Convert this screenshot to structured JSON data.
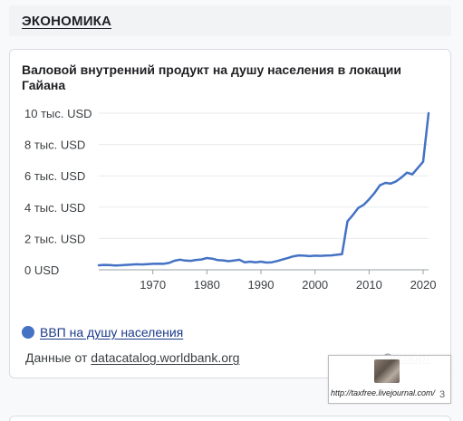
{
  "section": {
    "title": "ЭКОНОМИКА"
  },
  "card": {
    "title": "Валовой внутренний продукт на душу населения в локации Гайана",
    "legend_label": "ВВП на душу населения",
    "source_prefix": "Данные от ",
    "source_link": "datacatalog.worldbank.org",
    "export_label": "Экспорт"
  },
  "watermark": {
    "text": "http://taxfree.livejournal.com/",
    "extra": "3"
  },
  "colors": {
    "series": "#4472c4",
    "grid": "#e8eaed",
    "axis": "#9aa0a6"
  },
  "chart_data": {
    "type": "line",
    "title": "Валовой внутренний продукт на душу населения в локации Гайана",
    "xlabel": "",
    "ylabel": "",
    "xlim": [
      1960,
      2021
    ],
    "ylim": [
      0,
      10000
    ],
    "x_ticks": [
      1970,
      1980,
      1990,
      2000,
      2010,
      2020
    ],
    "y_ticks": [
      0,
      2000,
      4000,
      6000,
      8000,
      10000
    ],
    "y_tick_labels": [
      "0 USD",
      "2 тыс. USD",
      "4 тыс. USD",
      "6 тыс. USD",
      "8 тыс. USD",
      "10 тыс. USD"
    ],
    "grid": true,
    "legend": "bottom-left",
    "series": [
      {
        "name": "ВВП на душу населения",
        "x": [
          1960,
          1961,
          1962,
          1963,
          1964,
          1965,
          1966,
          1967,
          1968,
          1969,
          1970,
          1971,
          1972,
          1973,
          1974,
          1975,
          1976,
          1977,
          1978,
          1979,
          1980,
          1981,
          1982,
          1983,
          1984,
          1985,
          1986,
          1987,
          1988,
          1989,
          1990,
          1991,
          1992,
          1993,
          1994,
          1995,
          1996,
          1997,
          1998,
          1999,
          2000,
          2001,
          2002,
          2003,
          2004,
          2005,
          2006,
          2007,
          2008,
          2009,
          2010,
          2011,
          2012,
          2013,
          2014,
          2015,
          2016,
          2017,
          2018,
          2019,
          2020,
          2021
        ],
        "values": [
          290,
          310,
          300,
          280,
          290,
          310,
          330,
          350,
          340,
          360,
          380,
          390,
          380,
          440,
          580,
          650,
          590,
          570,
          630,
          660,
          750,
          710,
          620,
          600,
          550,
          590,
          640,
          480,
          520,
          480,
          520,
          460,
          480,
          560,
          660,
          760,
          860,
          920,
          900,
          870,
          900,
          890,
          910,
          920,
          960,
          1000,
          3100,
          3500,
          3950,
          4150,
          4500,
          4900,
          5400,
          5550,
          5500,
          5650,
          5900,
          6200,
          6100,
          6500,
          6900,
          10000
        ]
      }
    ]
  }
}
